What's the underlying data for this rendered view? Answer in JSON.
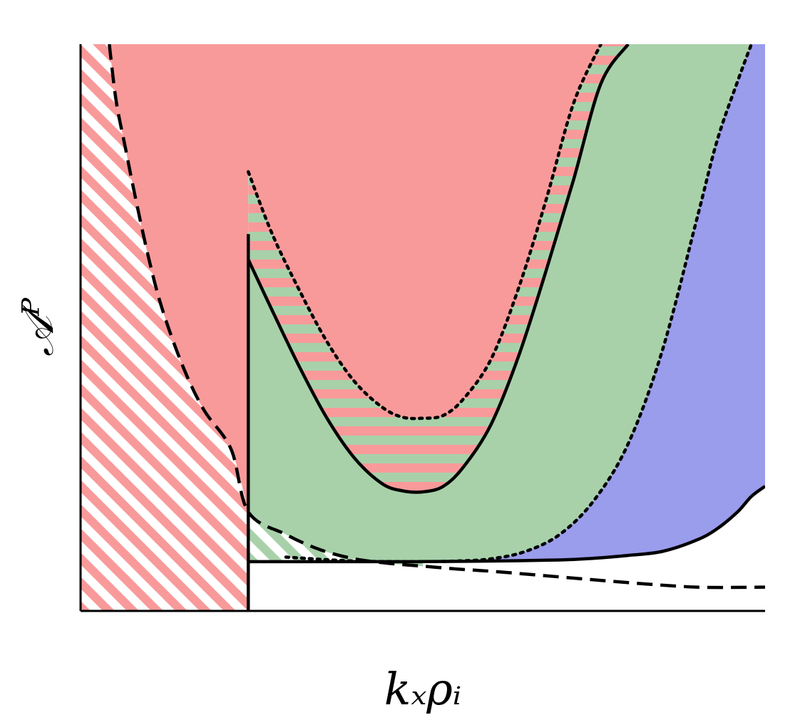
{
  "chart_data": {
    "type": "area",
    "title": "",
    "xlabel": "kₓρᵢ",
    "ylabel": "𝒜ᴾ",
    "xlim": [
      0,
      10
    ],
    "ylim": [
      0,
      10
    ],
    "ticks": "none",
    "grid": false,
    "legend": "none",
    "colors": {
      "red": "#f99a9a",
      "green": "#a8d1aa",
      "blue": "#9a9cec",
      "line": "#000000",
      "background": "#ffffff"
    },
    "curves": [
      {
        "id": "dashed-boundary",
        "style": "dashed",
        "x": [
          0.42,
          0.52,
          0.65,
          0.8,
          1.0,
          1.2,
          1.5,
          1.8,
          2.2,
          2.45,
          3.0,
          3.5,
          4.0,
          4.5,
          5.0,
          5.5,
          6.0,
          7.0,
          8.0,
          9.0,
          10.0
        ],
        "y": [
          10.0,
          9.0,
          8.2,
          7.3,
          6.2,
          5.3,
          4.3,
          3.55,
          2.85,
          1.75,
          1.35,
          1.08,
          0.92,
          0.84,
          0.79,
          0.74,
          0.7,
          0.6,
          0.5,
          0.42,
          0.42
        ]
      },
      {
        "id": "vertical-boundary",
        "style": "solid",
        "x": [
          2.45,
          2.45
        ],
        "y": [
          0.0,
          6.65
        ]
      },
      {
        "id": "threshold-floor",
        "style": "solid",
        "x": [
          2.45,
          5.0
        ],
        "y": [
          0.87,
          0.87
        ]
      },
      {
        "id": "inner-solid-parabola",
        "style": "solid",
        "x": [
          2.45,
          2.8,
          3.2,
          3.6,
          4.0,
          4.4,
          4.7,
          5.0,
          5.3,
          5.6,
          6.0,
          6.4,
          6.8,
          7.2,
          7.6,
          8.0
        ],
        "y": [
          6.2,
          5.3,
          4.3,
          3.4,
          2.7,
          2.25,
          2.12,
          2.1,
          2.2,
          2.55,
          3.3,
          4.5,
          6.0,
          7.6,
          9.3,
          10.0
        ]
      },
      {
        "id": "inner-dotted-parabola",
        "style": "dotted",
        "x": [
          2.45,
          2.8,
          3.2,
          3.6,
          4.0,
          4.4,
          4.7,
          5.0,
          5.3,
          5.6,
          6.0,
          6.4,
          6.8,
          7.2,
          7.6
        ],
        "y": [
          7.75,
          6.65,
          5.65,
          4.75,
          4.05,
          3.6,
          3.42,
          3.4,
          3.45,
          3.75,
          4.45,
          5.7,
          7.25,
          8.95,
          10.0
        ]
      },
      {
        "id": "outer-dotted-curve",
        "style": "dotted",
        "x": [
          3.0,
          4.0,
          5.0,
          5.5,
          6.0,
          6.5,
          7.0,
          7.5,
          8.0,
          8.5,
          9.0,
          9.3,
          9.6,
          9.8
        ],
        "y": [
          0.95,
          0.88,
          0.87,
          0.88,
          0.92,
          1.05,
          1.35,
          1.95,
          2.95,
          4.6,
          6.9,
          8.3,
          9.35,
          10.0
        ]
      },
      {
        "id": "outer-solid-curve",
        "style": "solid",
        "x": [
          5.0,
          6.0,
          7.0,
          7.5,
          8.0,
          8.5,
          9.0,
          9.3,
          9.6,
          9.8,
          10.0
        ],
        "y": [
          0.87,
          0.88,
          0.9,
          0.93,
          0.98,
          1.05,
          1.25,
          1.45,
          1.75,
          2.02,
          2.2
        ]
      }
    ]
  }
}
